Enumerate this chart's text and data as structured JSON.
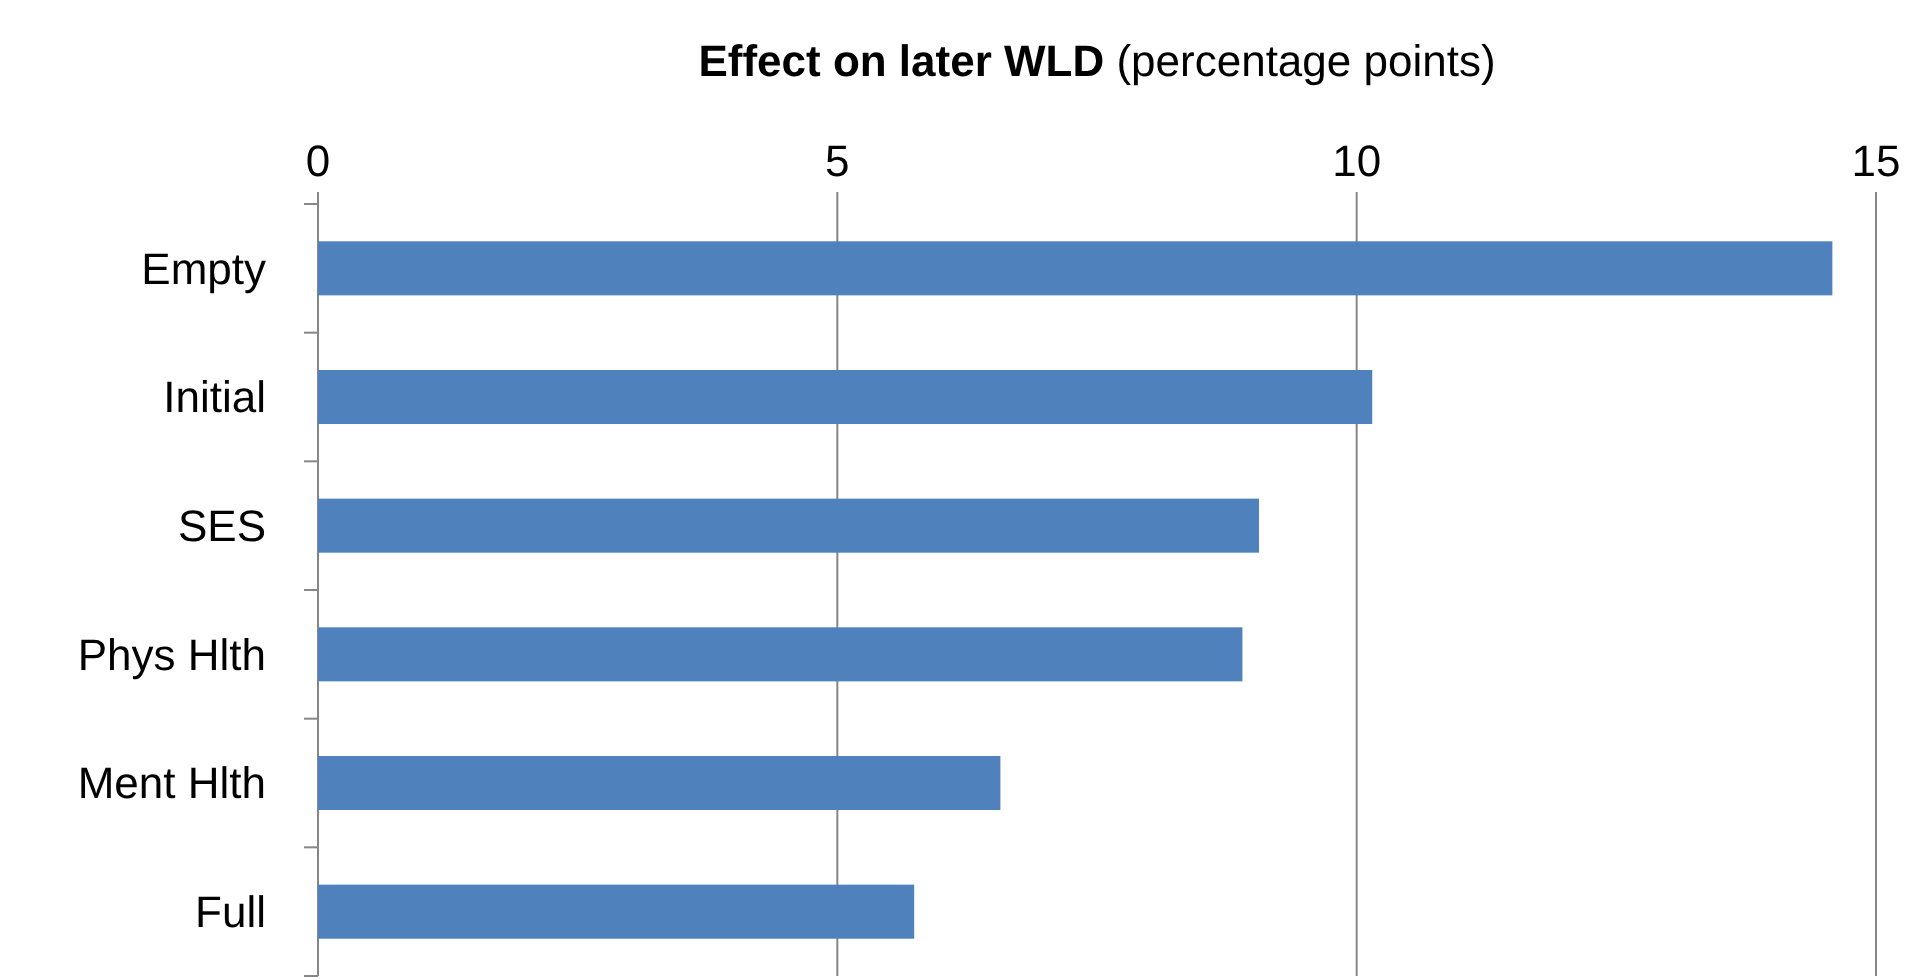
{
  "chart_data": {
    "type": "bar",
    "orientation": "horizontal",
    "xlabel": "Effect on later WLD (percentage points)",
    "categories": [
      "Empty",
      "Initial",
      "SES",
      "Phys Hlth",
      "Ment Hlth",
      "Full"
    ],
    "values": [
      14.58,
      10.15,
      9.06,
      8.9,
      6.57,
      5.74
    ],
    "color": "#4f81bd",
    "xlim": [
      0,
      15
    ],
    "xticks": [
      0,
      5,
      10,
      15
    ],
    "grid": "x"
  }
}
